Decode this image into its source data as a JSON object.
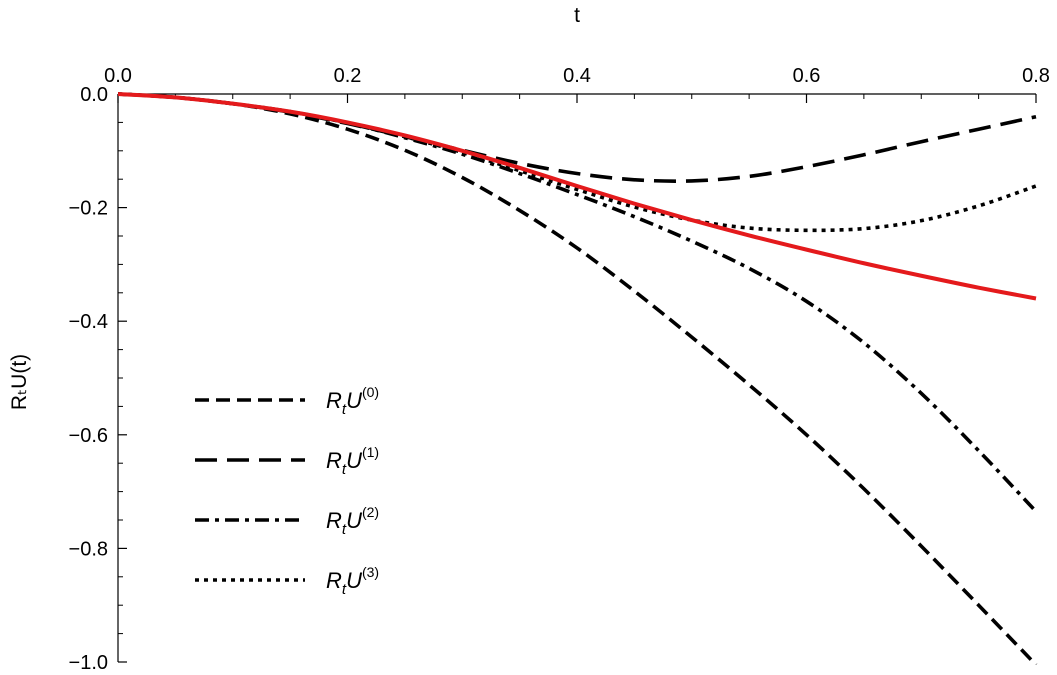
{
  "chart_data": {
    "type": "line",
    "xlabel": "t",
    "ylabel": "RₜU(t)",
    "xlim": [
      0,
      0.8
    ],
    "ylim": [
      -1.0,
      0.0
    ],
    "x_axis_position": "top",
    "x_ticks": [
      0.0,
      0.2,
      0.4,
      0.6,
      0.8
    ],
    "x_tick_labels": [
      "0.0",
      "0.2",
      "0.4",
      "0.6",
      "0.8"
    ],
    "y_ticks": [
      0.0,
      -0.2,
      -0.4,
      -0.6,
      -0.8,
      -1.0
    ],
    "y_tick_labels": [
      "0.0",
      "−0.2",
      "−0.4",
      "−0.6",
      "−0.8",
      "−1.0"
    ],
    "grid": false,
    "legend_position": "bottom-left",
    "x": [
      0.0,
      0.05,
      0.1,
      0.15,
      0.2,
      0.25,
      0.3,
      0.35,
      0.4,
      0.45,
      0.5,
      0.55,
      0.6,
      0.65,
      0.7,
      0.75,
      0.8
    ],
    "series": [
      {
        "legend_base": "R",
        "legend_sub": "t",
        "legend_var": "U",
        "legend_sup": "(0)",
        "style": "dashed",
        "color": "#000000",
        "values": [
          0.0,
          -0.006,
          -0.017,
          -0.035,
          -0.062,
          -0.099,
          -0.147,
          -0.205,
          -0.271,
          -0.347,
          -0.428,
          -0.512,
          -0.6,
          -0.695,
          -0.796,
          -0.9,
          -1.005
        ]
      },
      {
        "legend_base": "R",
        "legend_sub": "t",
        "legend_var": "U",
        "legend_sup": "(1)",
        "style": "long-dashed",
        "color": "#000000",
        "values": [
          0.0,
          -0.006,
          -0.017,
          -0.032,
          -0.052,
          -0.075,
          -0.099,
          -0.122,
          -0.14,
          -0.151,
          -0.153,
          -0.145,
          -0.128,
          -0.107,
          -0.084,
          -0.062,
          -0.04
        ]
      },
      {
        "legend_base": "R",
        "legend_sub": "t",
        "legend_var": "U",
        "legend_sup": "(2)",
        "style": "dash-dot",
        "color": "#000000",
        "values": [
          0.0,
          -0.006,
          -0.017,
          -0.031,
          -0.051,
          -0.077,
          -0.106,
          -0.14,
          -0.177,
          -0.216,
          -0.259,
          -0.307,
          -0.365,
          -0.438,
          -0.527,
          -0.628,
          -0.735
        ]
      },
      {
        "legend_base": "R",
        "legend_sub": "t",
        "legend_var": "U",
        "legend_sup": "(3)",
        "style": "dotted",
        "color": "#000000",
        "values": [
          0.0,
          -0.006,
          -0.017,
          -0.031,
          -0.051,
          -0.075,
          -0.103,
          -0.135,
          -0.168,
          -0.199,
          -0.222,
          -0.236,
          -0.24,
          -0.237,
          -0.223,
          -0.197,
          -0.162
        ]
      },
      {
        "style": "solid",
        "color": "#e41a1c",
        "values": [
          0.0,
          -0.006,
          -0.017,
          -0.031,
          -0.05,
          -0.073,
          -0.1,
          -0.13,
          -0.162,
          -0.193,
          -0.222,
          -0.249,
          -0.274,
          -0.298,
          -0.32,
          -0.341,
          -0.36
        ]
      }
    ]
  }
}
